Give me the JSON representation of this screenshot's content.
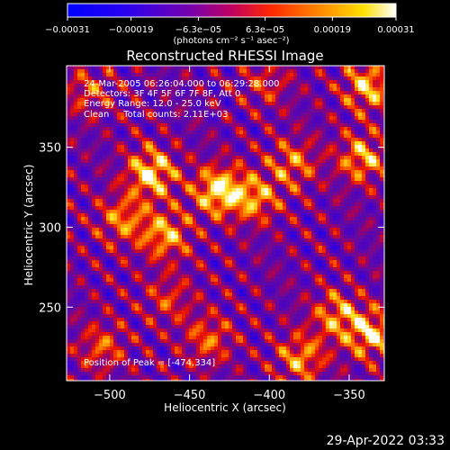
{
  "chart_data": {
    "type": "heatmap",
    "title": "Reconstructed RHESSI Image",
    "xlabel": "Heliocentric X (arcsec)",
    "ylabel": "Heliocentric Y (arcsec)",
    "xlim": [
      -527,
      -328
    ],
    "ylim": [
      204,
      401
    ],
    "xticks": [
      -500,
      -450,
      -400,
      -350
    ],
    "xtick_labels": [
      "−500",
      "−450",
      "−400",
      "−350"
    ],
    "yticks": [
      250,
      300,
      350
    ],
    "ytick_labels": [
      "250",
      "300",
      "350"
    ],
    "colorbar": {
      "colormap": "RHESSI blue-purple-red-yellow-white",
      "range": [
        -0.00031,
        0.00031
      ],
      "ticks": [
        -0.00031,
        -0.00019,
        -6.3e-05,
        6.3e-05,
        0.00019,
        0.00031
      ],
      "tick_labels": [
        "−0.00031",
        "−0.00019",
        "−6.3e−05",
        "6.3e−05",
        "0.00019",
        "0.00031"
      ],
      "unit_text": "(photons cm⁻² s⁻¹ asec⁻²)"
    },
    "peak": [
      -474,
      334
    ],
    "sources": [
      {
        "x": -432,
        "y": 323,
        "intensity": 0.00031
      },
      {
        "x": -474,
        "y": 334,
        "intensity": 0.0003
      },
      {
        "x": -409,
        "y": 318,
        "intensity": 0.00022
      },
      {
        "x": -492,
        "y": 305,
        "intensity": 0.0002
      },
      {
        "x": -465,
        "y": 295,
        "intensity": 0.00024
      },
      {
        "x": -385,
        "y": 340,
        "intensity": 0.00019
      },
      {
        "x": -342,
        "y": 343,
        "intensity": 0.00024
      },
      {
        "x": -338,
        "y": 388,
        "intensity": 0.00026
      },
      {
        "x": -358,
        "y": 245,
        "intensity": 0.00021
      },
      {
        "x": -336,
        "y": 233,
        "intensity": 0.00027
      },
      {
        "x": -380,
        "y": 218,
        "intensity": 0.00022
      },
      {
        "x": -438,
        "y": 230,
        "intensity": 0.00018
      },
      {
        "x": -505,
        "y": 225,
        "intensity": 0.00017
      },
      {
        "x": -463,
        "y": 255,
        "intensity": 0.00014
      },
      {
        "x": -514,
        "y": 385,
        "intensity": 0.00015
      },
      {
        "x": -402,
        "y": 390,
        "intensity": 0.00013
      }
    ]
  },
  "annotations": {
    "time_range": "24-Mar-2005 06:26:04.000 to 06:29:28.000",
    "detectors": "Detectors: 3F 4F 5F 6F 7F 8F, Att 0",
    "energy": "Energy Range: 12.0 - 25.0 keV",
    "clean": "Clean     Total counts: 2.11E+03",
    "peak": "Position of Peak = [-474,334]"
  },
  "timestamp": "29-Apr-2022 03:33",
  "colors": {
    "background": "#000000",
    "foreground": "#ffffff"
  }
}
